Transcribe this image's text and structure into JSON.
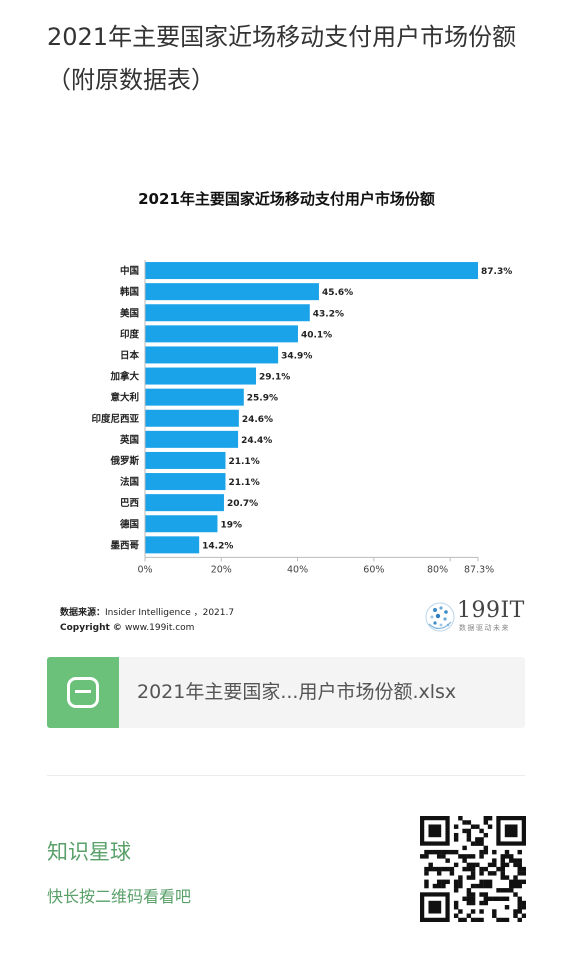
{
  "article": {
    "title": "2021年主要国家近场移动支付用户市场份额（附原数据表）"
  },
  "chart_data": {
    "type": "bar",
    "orientation": "horizontal",
    "title": "2021年主要国家近场移动支付用户市场份额",
    "categories": [
      "中国",
      "韩国",
      "美国",
      "印度",
      "日本",
      "加拿大",
      "意大利",
      "印度尼西亚",
      "英国",
      "俄罗斯",
      "法国",
      "巴西",
      "德国",
      "墨西哥"
    ],
    "values": [
      87.3,
      45.6,
      43.2,
      40.1,
      34.9,
      29.1,
      25.9,
      24.6,
      24.4,
      21.1,
      21.1,
      20.7,
      19,
      14.2
    ],
    "value_labels": [
      "87.3%",
      "45.6%",
      "43.2%",
      "40.1%",
      "34.9%",
      "29.1%",
      "25.9%",
      "24.6%",
      "24.4%",
      "21.1%",
      "21.1%",
      "20.7%",
      "19%",
      "14.2%"
    ],
    "x_ticks": [
      0,
      20,
      40,
      60,
      80,
      87.3
    ],
    "x_tick_labels": [
      "0%",
      "20%",
      "40%",
      "60%",
      "80%",
      "87.3%"
    ],
    "xlim": [
      0,
      87.3
    ],
    "bar_color": "#1aa3e8",
    "grid": false,
    "legend": "none"
  },
  "source": {
    "label": "数据来源：",
    "text": "Insider Intelligence ，2021.7",
    "copyright_label": "Copyright © ",
    "copyright_text": "www.199it.com"
  },
  "logo": {
    "text": "199IT",
    "sub": "数据驱动未来"
  },
  "attachment": {
    "file_name": "2021年主要国家...用户市场份额.xlsx",
    "icon": "spreadsheet-icon",
    "color": "#6bc17a"
  },
  "promo": {
    "title": "知识星球",
    "subtitle": "快长按二维码看看吧",
    "color": "#5aa06a"
  }
}
